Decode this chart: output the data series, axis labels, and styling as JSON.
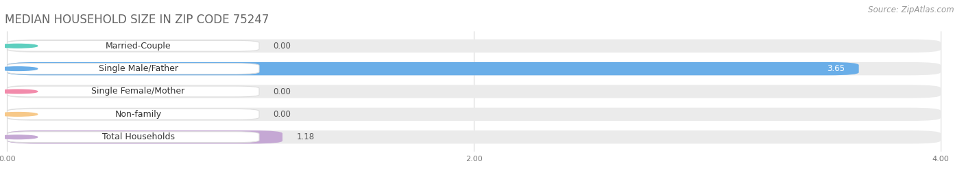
{
  "title": "MEDIAN HOUSEHOLD SIZE IN ZIP CODE 75247",
  "source": "Source: ZipAtlas.com",
  "categories": [
    "Married-Couple",
    "Single Male/Father",
    "Single Female/Mother",
    "Non-family",
    "Total Households"
  ],
  "values": [
    0.0,
    3.65,
    0.0,
    0.0,
    1.18
  ],
  "bar_colors": [
    "#5ecfbf",
    "#6aaee8",
    "#f28bab",
    "#f7c98a",
    "#c5a8d4"
  ],
  "bar_bg_color": "#ebebeb",
  "label_bg_color": "#ffffff",
  "xlim": [
    0,
    4.0
  ],
  "xticks": [
    0.0,
    2.0,
    4.0
  ],
  "xtick_labels": [
    "0.00",
    "2.00",
    "4.00"
  ],
  "title_fontsize": 12,
  "source_fontsize": 8.5,
  "label_fontsize": 9,
  "value_fontsize": 8.5,
  "bar_height": 0.58,
  "background_color": "#ffffff",
  "grid_color": "#d8d8d8"
}
